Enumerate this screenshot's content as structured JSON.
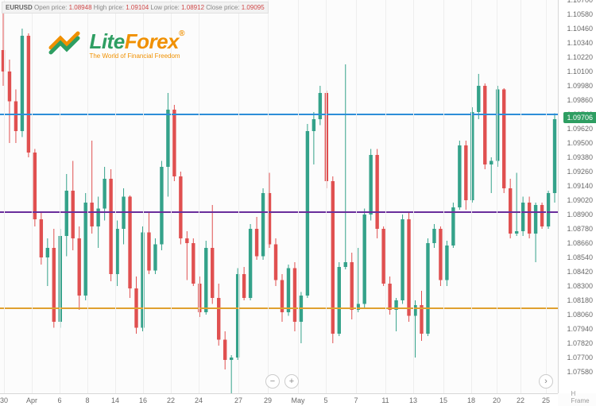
{
  "ohlc": {
    "symbol": "EURUSD",
    "open_label": "Open price:",
    "open": "1.08948",
    "high_label": "High price:",
    "high": "1.09104",
    "low_label": "Low price:",
    "low": "1.08912",
    "close_label": "Close price:",
    "close": "1.09095"
  },
  "logo": {
    "lite": "Lite",
    "forex": "Forex",
    "tagline": "The World of Financial Freedom",
    "registered": "®"
  },
  "price_tag": "1.09706",
  "x_sub": "H Frame",
  "chart": {
    "type": "candlestick",
    "background_color": "#fcfcfc",
    "grid_color": "#eeeeee",
    "bull_color": "#34a28a",
    "bear_color": "#e05050",
    "y_axis": {
      "min": 1.074,
      "max": 1.107,
      "ticks": [
        1.0758,
        1.077,
        1.0782,
        1.0794,
        1.0806,
        1.0818,
        1.083,
        1.0842,
        1.0854,
        1.0866,
        1.0878,
        1.089,
        1.0902,
        1.0914,
        1.0926,
        1.0938,
        1.095,
        1.0962,
        1.0974,
        1.0986,
        1.0998,
        1.101,
        1.1022,
        1.1034,
        1.1046,
        1.1058,
        1.107
      ],
      "labels": [
        "1.07580",
        "1.07700",
        "1.07820",
        "1.07940",
        "1.08060",
        "1.08180",
        "1.08300",
        "1.08420",
        "1.08540",
        "1.08660",
        "1.08780",
        "1.08900",
        "1.09020",
        "1.09140",
        "1.09260",
        "1.09380",
        "1.09500",
        "1.09620",
        "1.09740",
        "1.09860",
        "1.09980",
        "1.10100",
        "1.10220",
        "1.10340",
        "1.10460",
        "1.10580",
        "1.10700"
      ]
    },
    "x_axis": {
      "labels": [
        "30",
        "Apr",
        "6",
        "8",
        "14",
        "16",
        "22",
        "24",
        "27",
        "29",
        "May",
        "5",
        "7",
        "11",
        "13",
        "15",
        "18",
        "20",
        "22",
        "25"
      ],
      "positions": [
        5,
        40,
        75,
        110,
        145,
        180,
        215,
        250,
        300,
        337,
        375,
        410,
        448,
        485,
        520,
        558,
        593,
        625,
        655,
        687
      ]
    },
    "horizontal_lines": [
      {
        "price": 1.0975,
        "color": "#2d8ed8",
        "width": 2
      },
      {
        "price": 1.0893,
        "color": "#6a2e9c",
        "width": 2
      },
      {
        "price": 1.0812,
        "color": "#e0a030",
        "width": 2
      }
    ],
    "candles": [
      {
        "o": 1.1028,
        "h": 1.1068,
        "l": 1.0998,
        "c": 1.101
      },
      {
        "o": 1.101,
        "h": 1.102,
        "l": 1.095,
        "c": 1.0985
      },
      {
        "o": 1.0985,
        "h": 1.0995,
        "l": 1.095,
        "c": 1.096
      },
      {
        "o": 1.096,
        "h": 1.1046,
        "l": 1.0955,
        "c": 1.104
      },
      {
        "o": 1.104,
        "h": 1.1042,
        "l": 1.0938,
        "c": 1.0942
      },
      {
        "o": 1.0942,
        "h": 1.0945,
        "l": 1.088,
        "c": 1.0886
      },
      {
        "o": 1.0886,
        "h": 1.0892,
        "l": 1.0848,
        "c": 1.0854
      },
      {
        "o": 1.0854,
        "h": 1.087,
        "l": 1.083,
        "c": 1.0862
      },
      {
        "o": 1.0862,
        "h": 1.0878,
        "l": 1.0795,
        "c": 1.08
      },
      {
        "o": 1.08,
        "h": 1.0878,
        "l": 1.0795,
        "c": 1.0872
      },
      {
        "o": 1.0872,
        "h": 1.0924,
        "l": 1.0855,
        "c": 1.091
      },
      {
        "o": 1.091,
        "h": 1.0935,
        "l": 1.086,
        "c": 1.087
      },
      {
        "o": 1.087,
        "h": 1.088,
        "l": 1.081,
        "c": 1.0822
      },
      {
        "o": 1.0822,
        "h": 1.0908,
        "l": 1.0818,
        "c": 1.09
      },
      {
        "o": 1.09,
        "h": 1.0952,
        "l": 1.0874,
        "c": 1.088
      },
      {
        "o": 1.088,
        "h": 1.0905,
        "l": 1.0862,
        "c": 1.0895
      },
      {
        "o": 1.0895,
        "h": 1.093,
        "l": 1.0885,
        "c": 1.092
      },
      {
        "o": 1.092,
        "h": 1.0928,
        "l": 1.0834,
        "c": 1.084
      },
      {
        "o": 1.084,
        "h": 1.0885,
        "l": 1.083,
        "c": 1.0878
      },
      {
        "o": 1.0878,
        "h": 1.0912,
        "l": 1.0865,
        "c": 1.0905
      },
      {
        "o": 1.0905,
        "h": 1.0906,
        "l": 1.082,
        "c": 1.0828
      },
      {
        "o": 1.0828,
        "h": 1.0838,
        "l": 1.079,
        "c": 1.0795
      },
      {
        "o": 1.0795,
        "h": 1.088,
        "l": 1.0792,
        "c": 1.0875
      },
      {
        "o": 1.0875,
        "h": 1.0892,
        "l": 1.084,
        "c": 1.0843
      },
      {
        "o": 1.0843,
        "h": 1.087,
        "l": 1.084,
        "c": 1.0865
      },
      {
        "o": 1.0865,
        "h": 1.0935,
        "l": 1.086,
        "c": 1.093
      },
      {
        "o": 1.093,
        "h": 1.0992,
        "l": 1.0905,
        "c": 1.0978
      },
      {
        "o": 1.0978,
        "h": 1.0982,
        "l": 1.0918,
        "c": 1.0922
      },
      {
        "o": 1.0922,
        "h": 1.0926,
        "l": 1.0865,
        "c": 1.087
      },
      {
        "o": 1.087,
        "h": 1.0876,
        "l": 1.0835,
        "c": 1.0866
      },
      {
        "o": 1.0866,
        "h": 1.087,
        "l": 1.083,
        "c": 1.0832
      },
      {
        "o": 1.0832,
        "h": 1.0838,
        "l": 1.0804,
        "c": 1.0808
      },
      {
        "o": 1.0808,
        "h": 1.0868,
        "l": 1.0806,
        "c": 1.0862
      },
      {
        "o": 1.0862,
        "h": 1.0898,
        "l": 1.0815,
        "c": 1.082
      },
      {
        "o": 1.082,
        "h": 1.0832,
        "l": 1.078,
        "c": 1.0785
      },
      {
        "o": 1.0785,
        "h": 1.0792,
        "l": 1.076,
        "c": 1.0768
      },
      {
        "o": 1.0768,
        "h": 1.0772,
        "l": 1.074,
        "c": 1.077
      },
      {
        "o": 1.077,
        "h": 1.0845,
        "l": 1.0768,
        "c": 1.084
      },
      {
        "o": 1.084,
        "h": 1.0846,
        "l": 1.0818,
        "c": 1.082
      },
      {
        "o": 1.082,
        "h": 1.0882,
        "l": 1.0818,
        "c": 1.0878
      },
      {
        "o": 1.0878,
        "h": 1.0888,
        "l": 1.0852,
        "c": 1.0855
      },
      {
        "o": 1.0855,
        "h": 1.0912,
        "l": 1.0852,
        "c": 1.0908
      },
      {
        "o": 1.0908,
        "h": 1.0925,
        "l": 1.0862,
        "c": 1.0865
      },
      {
        "o": 1.0865,
        "h": 1.087,
        "l": 1.083,
        "c": 1.0835
      },
      {
        "o": 1.0835,
        "h": 1.084,
        "l": 1.08,
        "c": 1.0808
      },
      {
        "o": 1.0808,
        "h": 1.0848,
        "l": 1.0805,
        "c": 1.0845
      },
      {
        "o": 1.0845,
        "h": 1.085,
        "l": 1.0792,
        "c": 1.08
      },
      {
        "o": 1.08,
        "h": 1.0825,
        "l": 1.0782,
        "c": 1.0822
      },
      {
        "o": 1.0822,
        "h": 1.0966,
        "l": 1.082,
        "c": 1.096
      },
      {
        "o": 1.096,
        "h": 1.0976,
        "l": 1.0932,
        "c": 1.097
      },
      {
        "o": 1.097,
        "h": 1.0998,
        "l": 1.0965,
        "c": 1.0992
      },
      {
        "o": 1.0992,
        "h": 1.0994,
        "l": 1.0912,
        "c": 1.0918
      },
      {
        "o": 1.0918,
        "h": 1.0922,
        "l": 1.0782,
        "c": 1.079
      },
      {
        "o": 1.079,
        "h": 1.085,
        "l": 1.0788,
        "c": 1.0846
      },
      {
        "o": 1.0846,
        "h": 1.1016,
        "l": 1.0844,
        "c": 1.085
      },
      {
        "o": 1.085,
        "h": 1.0858,
        "l": 1.0802,
        "c": 1.081
      },
      {
        "o": 1.081,
        "h": 1.0862,
        "l": 1.0808,
        "c": 1.0815
      },
      {
        "o": 1.0815,
        "h": 1.0895,
        "l": 1.0812,
        "c": 1.089
      },
      {
        "o": 1.089,
        "h": 1.0945,
        "l": 1.0885,
        "c": 1.094
      },
      {
        "o": 1.094,
        "h": 1.0945,
        "l": 1.087,
        "c": 1.0878
      },
      {
        "o": 1.0878,
        "h": 1.088,
        "l": 1.083,
        "c": 1.0832
      },
      {
        "o": 1.0832,
        "h": 1.0838,
        "l": 1.0806,
        "c": 1.081
      },
      {
        "o": 1.081,
        "h": 1.082,
        "l": 1.0792,
        "c": 1.0818
      },
      {
        "o": 1.0818,
        "h": 1.089,
        "l": 1.0815,
        "c": 1.0886
      },
      {
        "o": 1.0886,
        "h": 1.0892,
        "l": 1.08,
        "c": 1.0805
      },
      {
        "o": 1.0805,
        "h": 1.0818,
        "l": 1.077,
        "c": 1.0814
      },
      {
        "o": 1.0814,
        "h": 1.0826,
        "l": 1.0784,
        "c": 1.079
      },
      {
        "o": 1.079,
        "h": 1.087,
        "l": 1.0788,
        "c": 1.0866
      },
      {
        "o": 1.0866,
        "h": 1.0882,
        "l": 1.0862,
        "c": 1.0878
      },
      {
        "o": 1.0878,
        "h": 1.088,
        "l": 1.083,
        "c": 1.0835
      },
      {
        "o": 1.0835,
        "h": 1.0868,
        "l": 1.083,
        "c": 1.0864
      },
      {
        "o": 1.0864,
        "h": 1.09,
        "l": 1.0862,
        "c": 1.0896
      },
      {
        "o": 1.0896,
        "h": 1.0952,
        "l": 1.0894,
        "c": 1.0948
      },
      {
        "o": 1.0948,
        "h": 1.0952,
        "l": 1.0894,
        "c": 1.0902
      },
      {
        "o": 1.0902,
        "h": 1.098,
        "l": 1.09,
        "c": 1.0976
      },
      {
        "o": 1.0976,
        "h": 1.1008,
        "l": 1.097,
        "c": 1.0998
      },
      {
        "o": 1.0998,
        "h": 1.1,
        "l": 1.0928,
        "c": 1.0932
      },
      {
        "o": 1.0932,
        "h": 1.0938,
        "l": 1.0908,
        "c": 1.0935
      },
      {
        "o": 1.0935,
        "h": 1.0998,
        "l": 1.093,
        "c": 1.0995
      },
      {
        "o": 1.0995,
        "h": 1.0996,
        "l": 1.0908,
        "c": 1.0912
      },
      {
        "o": 1.0912,
        "h": 1.092,
        "l": 1.087,
        "c": 1.0874
      },
      {
        "o": 1.0874,
        "h": 1.0925,
        "l": 1.0872,
        "c": 1.0876
      },
      {
        "o": 1.0876,
        "h": 1.0905,
        "l": 1.0872,
        "c": 1.09
      },
      {
        "o": 1.09,
        "h": 1.0905,
        "l": 1.087,
        "c": 1.0874
      },
      {
        "o": 1.0874,
        "h": 1.09,
        "l": 1.085,
        "c": 1.0898
      },
      {
        "o": 1.0898,
        "h": 1.09,
        "l": 1.0878,
        "c": 1.088
      },
      {
        "o": 1.088,
        "h": 1.091,
        "l": 1.0878,
        "c": 1.0908
      },
      {
        "o": 1.0908,
        "h": 1.0975,
        "l": 1.09,
        "c": 1.097
      }
    ]
  },
  "nav": {
    "zoom_out": "−",
    "zoom_in": "+",
    "next": "›"
  }
}
